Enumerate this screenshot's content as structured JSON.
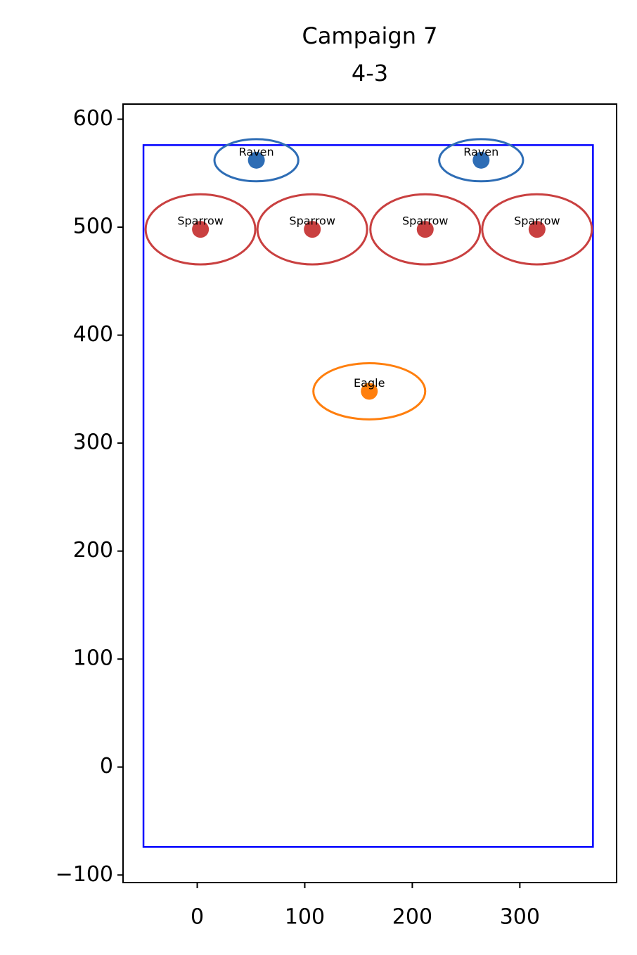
{
  "chart_data": {
    "type": "scatter",
    "title": "Campaign 7",
    "subtitle": "4-3",
    "xlim": [
      -69,
      390
    ],
    "ylim": [
      -107,
      614
    ],
    "xticks": [
      0,
      100,
      200,
      300
    ],
    "yticks": [
      {
        "value": -100,
        "label": "−100"
      },
      0,
      100,
      200,
      300,
      400,
      500,
      600
    ],
    "field": {
      "xlim": [
        -50,
        368
      ],
      "ylim": [
        -74,
        576
      ],
      "color": "#0000ff"
    },
    "points": [
      {
        "label": "Raven",
        "x": 55,
        "y": 562,
        "width": 78,
        "height": 39,
        "color": "#2e6db5"
      },
      {
        "label": "Raven",
        "x": 264,
        "y": 562,
        "width": 78,
        "height": 39,
        "color": "#2e6db5"
      },
      {
        "label": "Sparrow",
        "x": 3,
        "y": 498,
        "width": 102,
        "height": 65,
        "color": "#c94040"
      },
      {
        "label": "Sparrow",
        "x": 107,
        "y": 498,
        "width": 102,
        "height": 65,
        "color": "#c94040"
      },
      {
        "label": "Sparrow",
        "x": 212,
        "y": 498,
        "width": 102,
        "height": 65,
        "color": "#c94040"
      },
      {
        "label": "Sparrow",
        "x": 316,
        "y": 498,
        "width": 102,
        "height": 65,
        "color": "#c94040"
      },
      {
        "label": "Eagle",
        "x": 160,
        "y": 348,
        "width": 104,
        "height": 52,
        "color": "#ff7f0e"
      }
    ]
  }
}
